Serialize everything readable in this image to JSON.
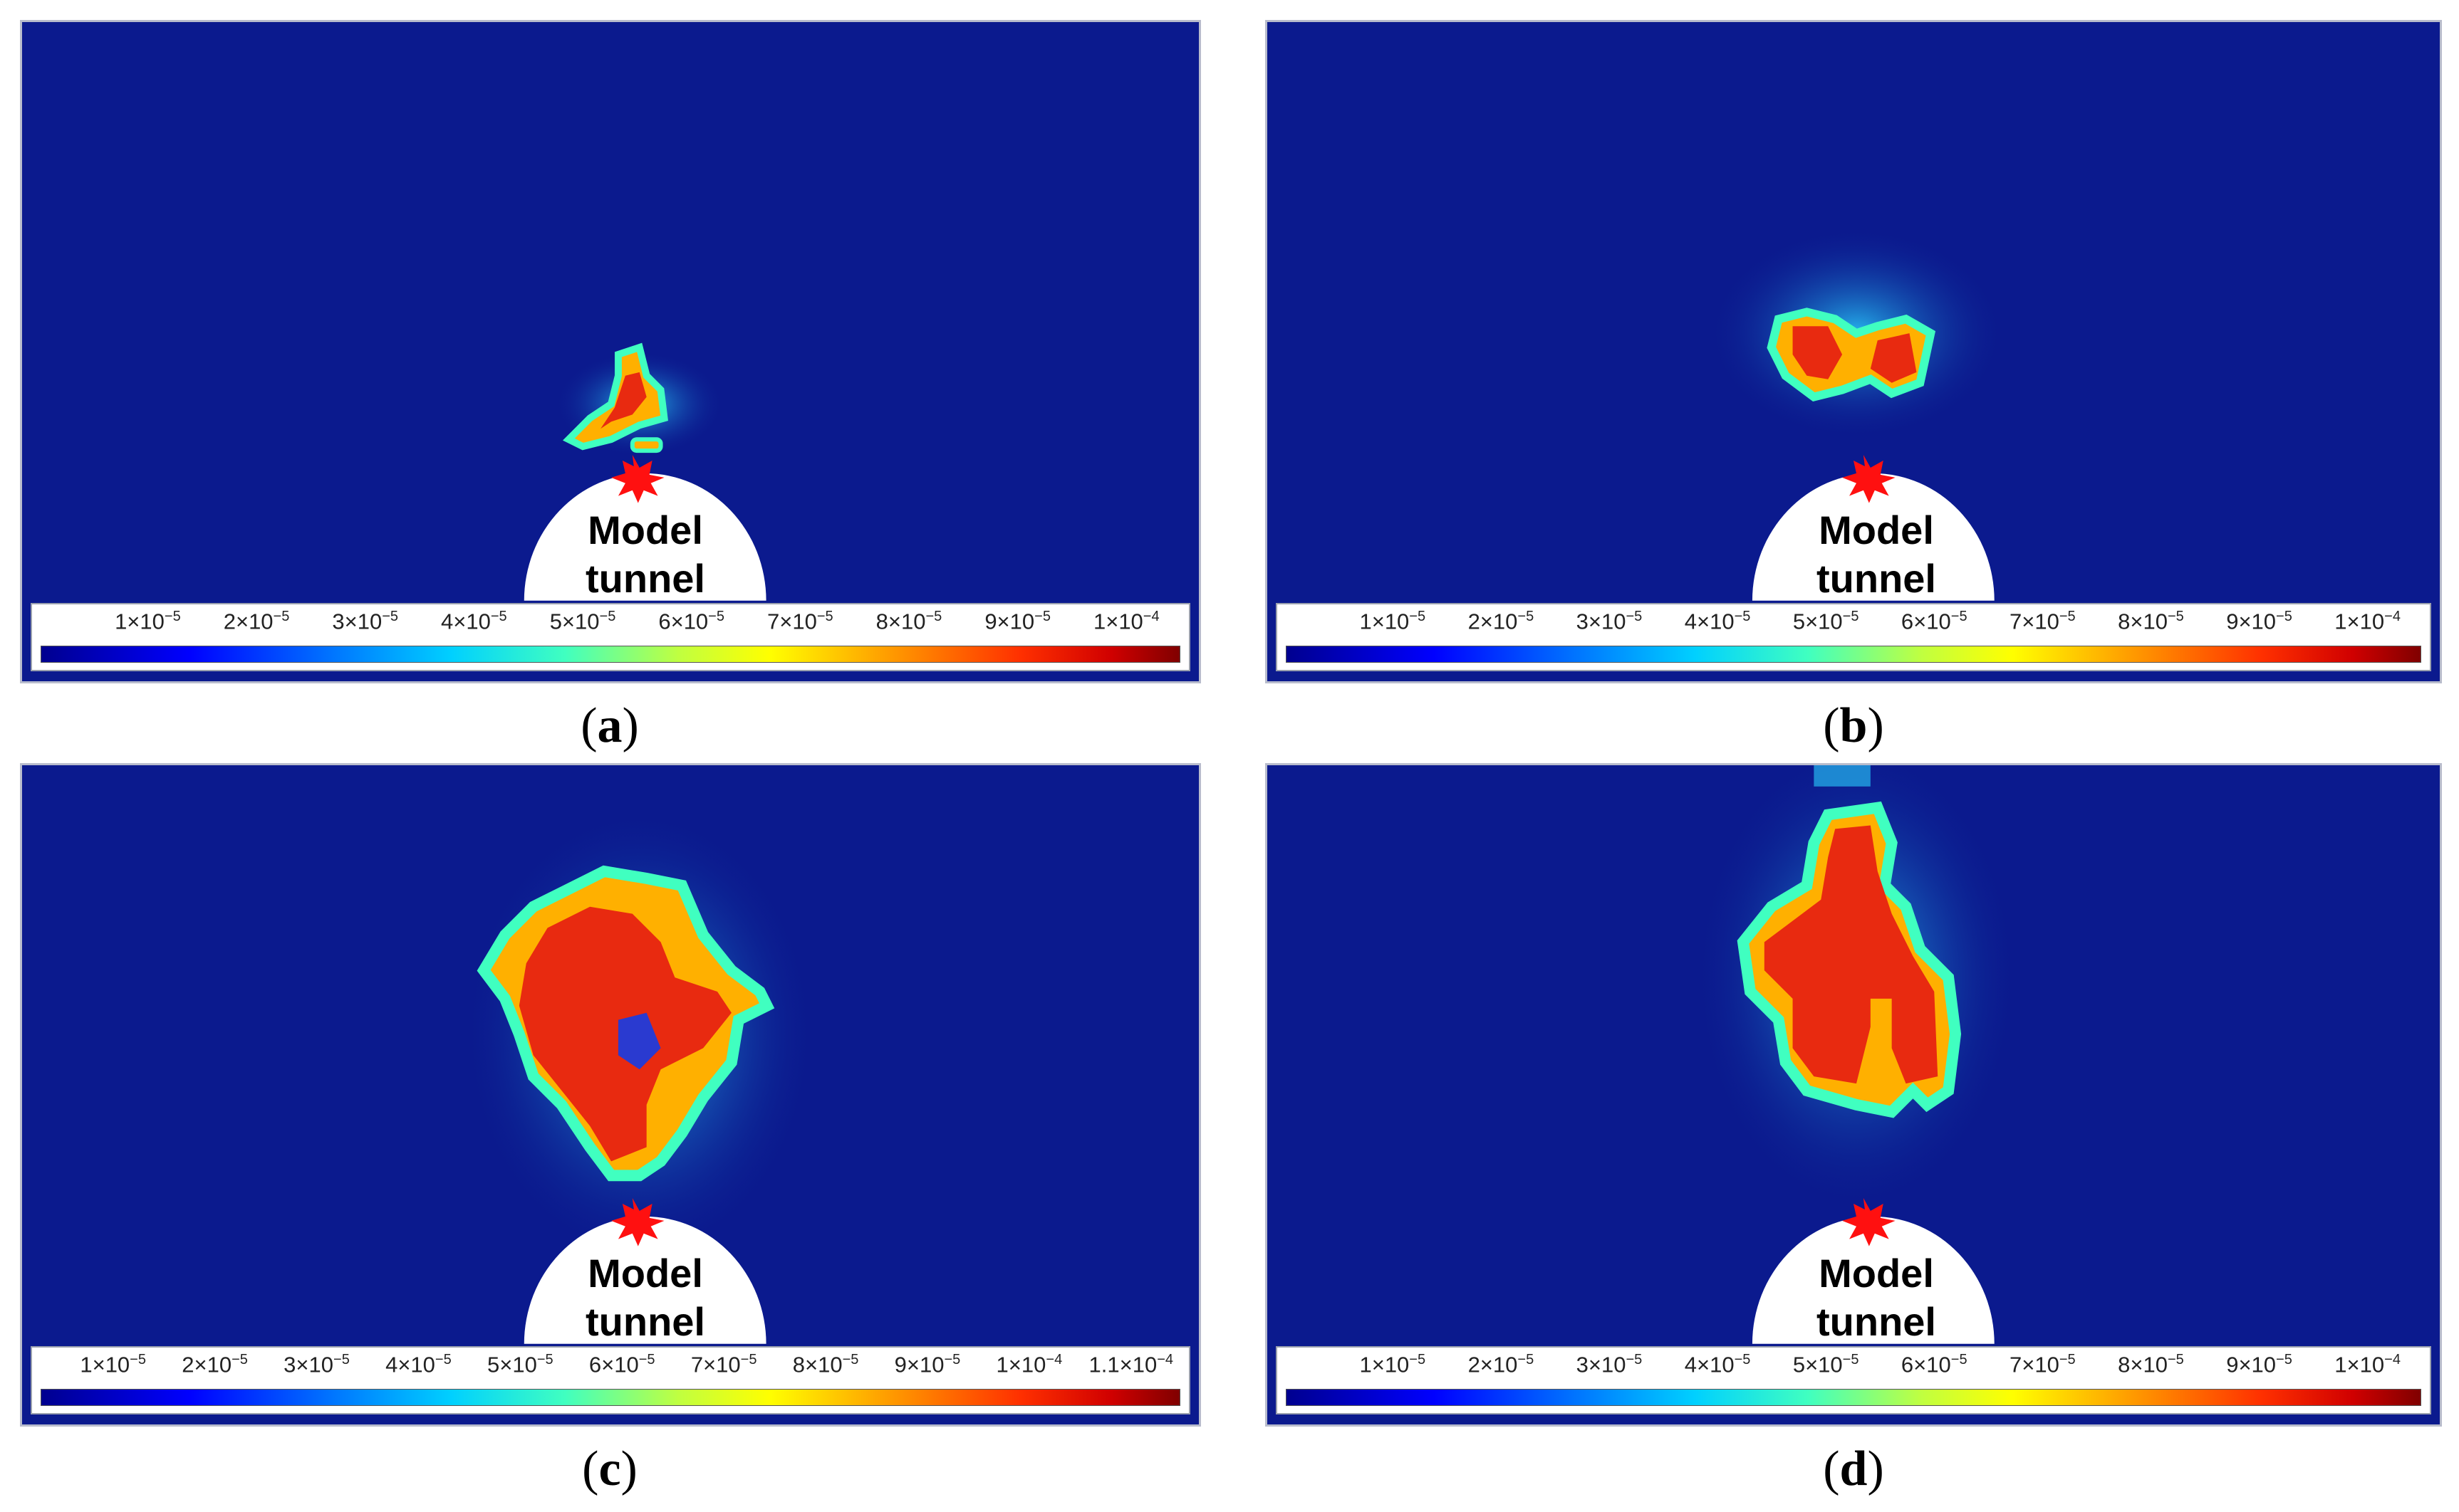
{
  "panels": [
    {
      "caption_letter": "a",
      "tunnel_label_line1": "Model",
      "tunnel_label_line2": "tunnel",
      "colorbar_ticks": [
        "1×10",
        "2×10",
        "3×10",
        "4×10",
        "5×10",
        "6×10",
        "7×10",
        "8×10",
        "9×10",
        "1×10"
      ],
      "colorbar_exponents": [
        "−5",
        "−5",
        "−5",
        "−5",
        "−5",
        "−5",
        "−5",
        "−5",
        "−5",
        "−4"
      ]
    },
    {
      "caption_letter": "b",
      "tunnel_label_line1": "Model",
      "tunnel_label_line2": "tunnel",
      "colorbar_ticks": [
        "1×10",
        "2×10",
        "3×10",
        "4×10",
        "5×10",
        "6×10",
        "7×10",
        "8×10",
        "9×10",
        "1×10"
      ],
      "colorbar_exponents": [
        "−5",
        "−5",
        "−5",
        "−5",
        "−5",
        "−5",
        "−5",
        "−5",
        "−5",
        "−4"
      ]
    },
    {
      "caption_letter": "c",
      "tunnel_label_line1": "Model",
      "tunnel_label_line2": "tunnel",
      "colorbar_ticks": [
        "1×10",
        "2×10",
        "3×10",
        "4×10",
        "5×10",
        "6×10",
        "7×10",
        "8×10",
        "9×10",
        "1×10",
        "1.1×10"
      ],
      "colorbar_exponents": [
        "−5",
        "−5",
        "−5",
        "−5",
        "−5",
        "−5",
        "−5",
        "−5",
        "−5",
        "−4",
        "−4"
      ]
    },
    {
      "caption_letter": "d",
      "tunnel_label_line1": "Model",
      "tunnel_label_line2": "tunnel",
      "colorbar_ticks": [
        "1×10",
        "2×10",
        "3×10",
        "4×10",
        "5×10",
        "6×10",
        "7×10",
        "8×10",
        "9×10",
        "1×10"
      ],
      "colorbar_exponents": [
        "−5",
        "−5",
        "−5",
        "−5",
        "−5",
        "−5",
        "−5",
        "−5",
        "−5",
        "−4"
      ]
    }
  ],
  "colors": {
    "background_field": "#0b1a8e",
    "hot_core": "#e82a10",
    "warm_ring": "#ffb000",
    "cool_halo": "#2ad0ff",
    "blast_marker": "#ff1010"
  },
  "icons": [
    "blast-star-icon"
  ]
}
